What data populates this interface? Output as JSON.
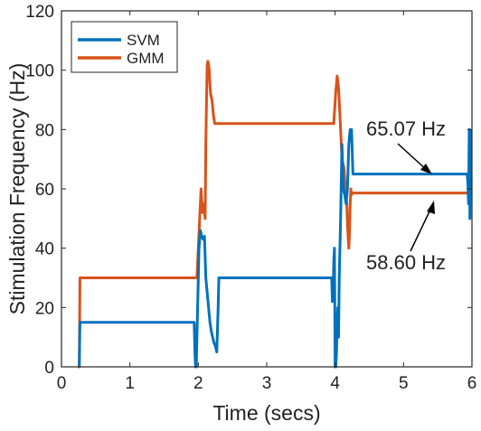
{
  "chart_data": {
    "type": "line",
    "title": "",
    "xlabel": "Time (secs)",
    "ylabel": "Stimulation Frequency (Hz)",
    "xlim": [
      0,
      6
    ],
    "ylim": [
      0,
      120
    ],
    "xticks": [
      "0",
      "1",
      "2",
      "3",
      "4",
      "5",
      "6"
    ],
    "yticks": [
      "0",
      "20",
      "40",
      "60",
      "80",
      "100",
      "120"
    ],
    "grid": false,
    "legend_position": "top-left",
    "series": [
      {
        "name": "SVM",
        "color": "#0072BD",
        "x": [
          0.26,
          0.27,
          1.94,
          1.95,
          1.96,
          1.97,
          1.98,
          1.99,
          2.0,
          2.01,
          2.03,
          2.05,
          2.07,
          2.09,
          2.11,
          2.13,
          2.15,
          2.17,
          2.19,
          2.21,
          2.23,
          2.25,
          2.27,
          2.29,
          2.3,
          2.31,
          3.95,
          3.96,
          3.97,
          3.98,
          3.99,
          4.0,
          4.01,
          4.02,
          4.03,
          4.04,
          4.05,
          4.06,
          4.08,
          4.1,
          4.12,
          4.14,
          4.16,
          4.18,
          4.2,
          4.22,
          4.24,
          4.26,
          4.28,
          5.93,
          5.94,
          5.95,
          5.96,
          5.97,
          5.98
        ],
        "y": [
          0,
          15,
          15,
          5,
          0,
          0,
          10,
          20,
          30,
          40,
          46,
          44,
          43,
          44,
          30,
          25,
          20,
          15,
          12,
          10,
          8,
          7,
          5,
          20,
          30,
          30,
          30,
          22,
          25,
          35,
          40,
          0,
          0,
          5,
          15,
          20,
          10,
          30,
          50,
          75,
          60,
          58,
          55,
          60,
          75,
          80,
          80,
          65,
          65,
          65,
          62,
          55,
          80,
          50,
          80
        ]
      },
      {
        "name": "GMM",
        "color": "#D95319",
        "x": [
          0.24,
          0.26,
          0.27,
          1.98,
          2.0,
          2.02,
          2.04,
          2.06,
          2.08,
          2.1,
          2.11,
          2.12,
          2.13,
          2.14,
          2.15,
          2.16,
          2.17,
          2.18,
          2.2,
          2.22,
          2.24,
          2.27,
          2.3,
          2.33,
          3.95,
          3.98,
          4.01,
          4.03,
          4.05,
          4.07,
          4.1,
          4.13,
          4.15,
          4.17,
          4.18,
          4.2,
          4.21,
          4.22,
          4.23,
          4.24,
          4.25,
          5.98
        ],
        "y": [
          0,
          0,
          30,
          30,
          40,
          50,
          60,
          52,
          55,
          50,
          75,
          90,
          102,
          103,
          102,
          100,
          95,
          92,
          90,
          85,
          82,
          82,
          82,
          82,
          82,
          82,
          93,
          98,
          94,
          85,
          70,
          67,
          60,
          55,
          48,
          40,
          45,
          55,
          60,
          58,
          58.6,
          58.6
        ]
      }
    ],
    "annotations": [
      {
        "text": "65.07 Hz",
        "x": 5.6,
        "y": 65.07
      },
      {
        "text": "58.60 Hz",
        "x": 5.6,
        "y": 58.6
      }
    ]
  }
}
